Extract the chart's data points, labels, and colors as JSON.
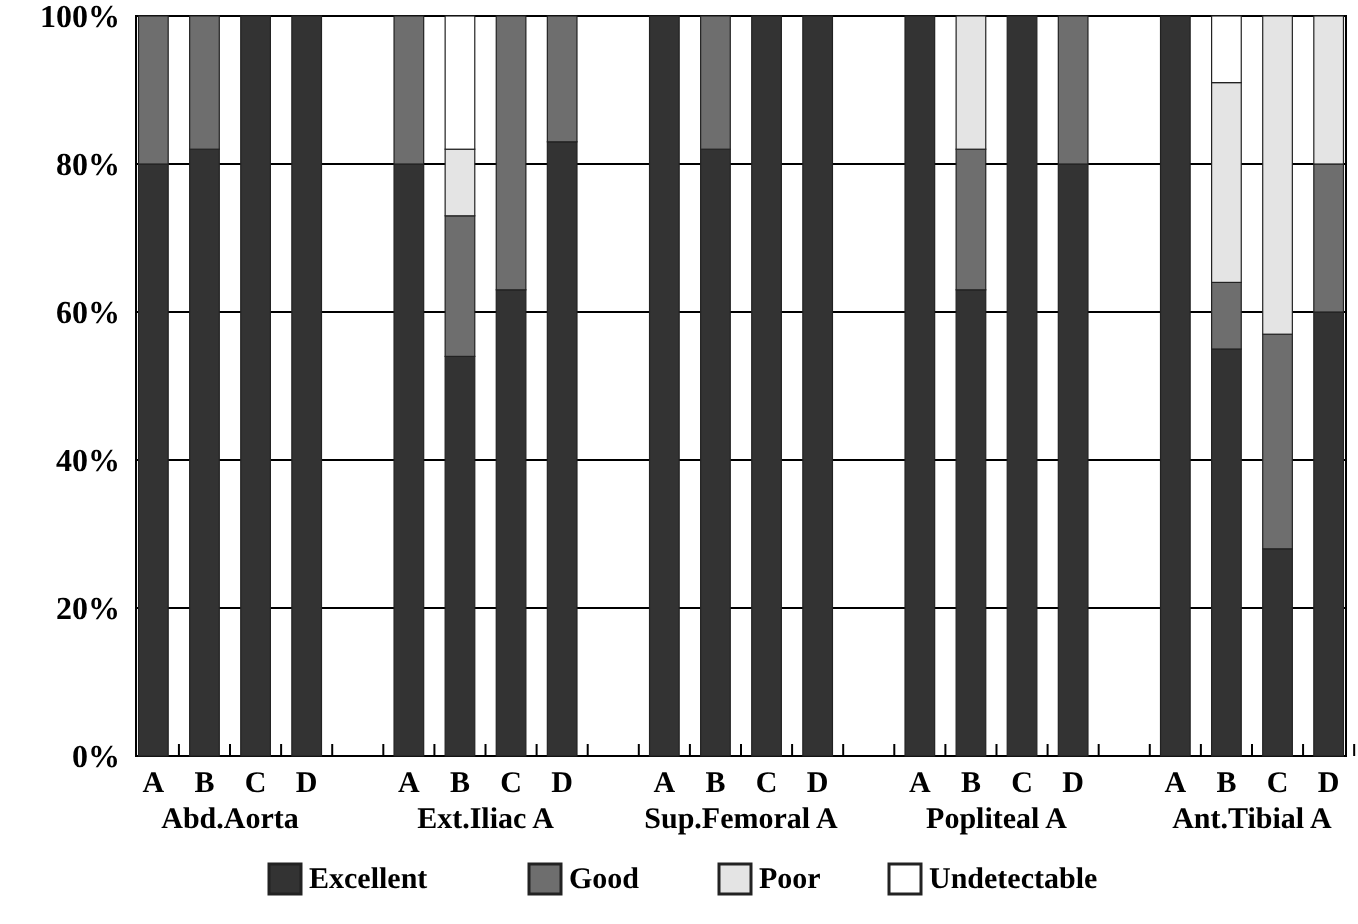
{
  "chart_data": {
    "type": "bar",
    "stacked": true,
    "categories": [
      "A",
      "B",
      "C",
      "D",
      null,
      "A",
      "B",
      "C",
      "D",
      null,
      "A",
      "B",
      "C",
      "D",
      null,
      "A",
      "B",
      "C",
      "D",
      null,
      "A",
      "B",
      "C",
      "D"
    ],
    "series": [
      {
        "name": "Excellent",
        "color": "#333333",
        "values": [
          80,
          82,
          100,
          100,
          null,
          80,
          54,
          63,
          83,
          null,
          100,
          82,
          100,
          100,
          null,
          100,
          63,
          100,
          80,
          null,
          100,
          55,
          28,
          60
        ]
      },
      {
        "name": "Good",
        "color": "#6e6e6e",
        "values": [
          20,
          18,
          0,
          0,
          null,
          20,
          19,
          37,
          17,
          null,
          0,
          18,
          0,
          0,
          null,
          0,
          19,
          0,
          20,
          null,
          0,
          9,
          29,
          20
        ]
      },
      {
        "name": "Poor",
        "color": "#e4e4e4",
        "values": [
          0,
          0,
          0,
          0,
          null,
          0,
          9,
          0,
          0,
          null,
          0,
          0,
          0,
          0,
          null,
          0,
          18,
          0,
          0,
          null,
          0,
          27,
          43,
          20
        ]
      },
      {
        "name": "Undetectable",
        "color": "#ffffff",
        "values": [
          0,
          0,
          0,
          0,
          null,
          0,
          18,
          0,
          0,
          null,
          0,
          0,
          0,
          0,
          null,
          0,
          0,
          0,
          0,
          null,
          0,
          9,
          0,
          0
        ]
      }
    ],
    "annotations": [
      "Abd.Aorta",
      "Ext.Iliac A",
      "Sup.Femoral A",
      "Popliteal A",
      "Ant.Tibial A"
    ],
    "ylim": [
      0,
      100
    ],
    "yticks": [
      {
        "value": 0,
        "label": "0%"
      },
      {
        "value": 20,
        "label": "20%"
      },
      {
        "value": 40,
        "label": "40%"
      },
      {
        "value": 60,
        "label": "60%"
      },
      {
        "value": 80,
        "label": "80%"
      },
      {
        "value": 100,
        "label": "100%"
      }
    ],
    "grid": "y",
    "legend": "bottom"
  }
}
